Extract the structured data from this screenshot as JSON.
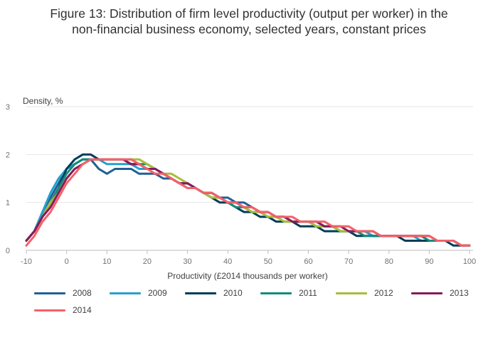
{
  "title_lines": [
    "Figure 13: Distribution of firm level productivity (output per worker) in the",
    "non-financial business economy, selected years, constant prices"
  ],
  "chart_data": {
    "type": "line",
    "title": "Figure 13: Distribution of firm level productivity (output per worker) in the non-financial business economy, selected years, constant prices",
    "xlabel": "Productivity (£2014 thousands per worker)",
    "ylabel": "Density, %",
    "xlim": [
      -10,
      100
    ],
    "ylim": [
      0,
      3
    ],
    "x_ticks": [
      "-10",
      "0",
      "10",
      "20",
      "30",
      "40",
      "50",
      "60",
      "70",
      "80",
      "90",
      "100"
    ],
    "y_ticks": [
      "0",
      "1",
      "2",
      "3"
    ],
    "grid": true,
    "legend_position": "bottom",
    "series": [
      {
        "name": "2008",
        "color": "#206095",
        "x": [
          -10,
          -8,
          -6,
          -4,
          -2,
          0,
          2,
          4,
          6,
          8,
          10,
          12,
          14,
          16,
          18,
          20,
          22,
          24,
          26,
          28,
          30,
          32,
          34,
          36,
          38,
          40,
          42,
          44,
          46,
          48,
          50,
          52,
          54,
          56,
          58,
          60,
          62,
          64,
          66,
          68,
          70,
          72,
          74,
          76,
          78,
          80,
          82,
          84,
          86,
          88,
          90,
          92,
          94,
          96,
          98,
          100
        ],
        "y": [
          0.2,
          0.4,
          0.8,
          1.1,
          1.4,
          1.7,
          1.8,
          1.9,
          1.9,
          1.7,
          1.6,
          1.7,
          1.7,
          1.7,
          1.6,
          1.6,
          1.6,
          1.5,
          1.5,
          1.4,
          1.4,
          1.3,
          1.2,
          1.2,
          1.1,
          1.1,
          1.0,
          1.0,
          0.9,
          0.8,
          0.8,
          0.7,
          0.7,
          0.6,
          0.6,
          0.6,
          0.6,
          0.5,
          0.5,
          0.4,
          0.4,
          0.4,
          0.4,
          0.3,
          0.3,
          0.3,
          0.3,
          0.3,
          0.3,
          0.3,
          0.2,
          0.2,
          0.2,
          0.2,
          0.1,
          0.1
        ]
      },
      {
        "name": "2009",
        "color": "#27a0cc",
        "x": [
          -10,
          -8,
          -6,
          -4,
          -2,
          0,
          2,
          4,
          6,
          8,
          10,
          12,
          14,
          16,
          18,
          20,
          22,
          24,
          26,
          28,
          30,
          32,
          34,
          36,
          38,
          40,
          42,
          44,
          46,
          48,
          50,
          52,
          54,
          56,
          58,
          60,
          62,
          64,
          66,
          68,
          70,
          72,
          74,
          76,
          78,
          80,
          82,
          84,
          86,
          88,
          90,
          92,
          94,
          96,
          98,
          100
        ],
        "y": [
          0.2,
          0.4,
          0.8,
          1.2,
          1.5,
          1.7,
          1.8,
          1.9,
          1.9,
          1.9,
          1.8,
          1.8,
          1.8,
          1.8,
          1.7,
          1.7,
          1.7,
          1.6,
          1.5,
          1.4,
          1.4,
          1.3,
          1.2,
          1.2,
          1.1,
          1.0,
          1.0,
          0.9,
          0.9,
          0.8,
          0.8,
          0.7,
          0.7,
          0.6,
          0.6,
          0.6,
          0.6,
          0.5,
          0.5,
          0.4,
          0.4,
          0.4,
          0.4,
          0.3,
          0.3,
          0.3,
          0.3,
          0.3,
          0.3,
          0.2,
          0.2,
          0.2,
          0.2,
          0.2,
          0.1,
          0.1
        ]
      },
      {
        "name": "2010",
        "color": "#003c57",
        "x": [
          -10,
          -8,
          -6,
          -4,
          -2,
          0,
          2,
          4,
          6,
          8,
          10,
          12,
          14,
          16,
          18,
          20,
          22,
          24,
          26,
          28,
          30,
          32,
          34,
          36,
          38,
          40,
          42,
          44,
          46,
          48,
          50,
          52,
          54,
          56,
          58,
          60,
          62,
          64,
          66,
          68,
          70,
          72,
          74,
          76,
          78,
          80,
          82,
          84,
          86,
          88,
          90,
          92,
          94,
          96,
          98,
          100
        ],
        "y": [
          0.2,
          0.4,
          0.7,
          1.0,
          1.3,
          1.7,
          1.9,
          2.0,
          2.0,
          1.9,
          1.9,
          1.9,
          1.9,
          1.8,
          1.8,
          1.7,
          1.7,
          1.6,
          1.5,
          1.4,
          1.4,
          1.3,
          1.2,
          1.1,
          1.0,
          1.0,
          0.9,
          0.8,
          0.8,
          0.7,
          0.7,
          0.6,
          0.6,
          0.6,
          0.5,
          0.5,
          0.5,
          0.4,
          0.4,
          0.4,
          0.4,
          0.3,
          0.3,
          0.3,
          0.3,
          0.3,
          0.3,
          0.2,
          0.2,
          0.2,
          0.2,
          0.2,
          0.2,
          0.1,
          0.1,
          0.1
        ]
      },
      {
        "name": "2011",
        "color": "#118c7b",
        "x": [
          -10,
          -8,
          -6,
          -4,
          -2,
          0,
          2,
          4,
          6,
          8,
          10,
          12,
          14,
          16,
          18,
          20,
          22,
          24,
          26,
          28,
          30,
          32,
          34,
          36,
          38,
          40,
          42,
          44,
          46,
          48,
          50,
          52,
          54,
          56,
          58,
          60,
          62,
          64,
          66,
          68,
          70,
          72,
          74,
          76,
          78,
          80,
          82,
          84,
          86,
          88,
          90,
          92,
          94,
          96,
          98,
          100
        ],
        "y": [
          0.2,
          0.4,
          0.7,
          1.0,
          1.3,
          1.6,
          1.8,
          1.9,
          1.9,
          1.9,
          1.9,
          1.9,
          1.9,
          1.9,
          1.8,
          1.8,
          1.7,
          1.6,
          1.5,
          1.4,
          1.3,
          1.3,
          1.2,
          1.1,
          1.1,
          1.0,
          0.9,
          0.9,
          0.8,
          0.8,
          0.7,
          0.7,
          0.7,
          0.6,
          0.6,
          0.6,
          0.5,
          0.5,
          0.5,
          0.4,
          0.4,
          0.4,
          0.3,
          0.3,
          0.3,
          0.3,
          0.3,
          0.3,
          0.3,
          0.3,
          0.2,
          0.2,
          0.2,
          0.2,
          0.1,
          0.1
        ]
      },
      {
        "name": "2012",
        "color": "#a8bd3a",
        "x": [
          -10,
          -8,
          -6,
          -4,
          -2,
          0,
          2,
          4,
          6,
          8,
          10,
          12,
          14,
          16,
          18,
          20,
          22,
          24,
          26,
          28,
          30,
          32,
          34,
          36,
          38,
          40,
          42,
          44,
          46,
          48,
          50,
          52,
          54,
          56,
          58,
          60,
          62,
          64,
          66,
          68,
          70,
          72,
          74,
          76,
          78,
          80,
          82,
          84,
          86,
          88,
          90,
          92,
          94,
          96,
          98,
          100
        ],
        "y": [
          0.2,
          0.4,
          0.7,
          1.0,
          1.2,
          1.5,
          1.7,
          1.8,
          1.9,
          1.9,
          1.9,
          1.9,
          1.9,
          1.9,
          1.9,
          1.8,
          1.7,
          1.6,
          1.6,
          1.5,
          1.4,
          1.3,
          1.2,
          1.1,
          1.1,
          1.0,
          1.0,
          0.9,
          0.8,
          0.8,
          0.7,
          0.7,
          0.6,
          0.6,
          0.6,
          0.6,
          0.5,
          0.5,
          0.5,
          0.4,
          0.4,
          0.4,
          0.4,
          0.4,
          0.3,
          0.3,
          0.3,
          0.3,
          0.3,
          0.3,
          0.3,
          0.2,
          0.2,
          0.2,
          0.1,
          0.1
        ]
      },
      {
        "name": "2013",
        "color": "#871a5b",
        "x": [
          -10,
          -8,
          -6,
          -4,
          -2,
          0,
          2,
          4,
          6,
          8,
          10,
          12,
          14,
          16,
          18,
          20,
          22,
          24,
          26,
          28,
          30,
          32,
          34,
          36,
          38,
          40,
          42,
          44,
          46,
          48,
          50,
          52,
          54,
          56,
          58,
          60,
          62,
          64,
          66,
          68,
          70,
          72,
          74,
          76,
          78,
          80,
          82,
          84,
          86,
          88,
          90,
          92,
          94,
          96,
          98,
          100
        ],
        "y": [
          0.2,
          0.4,
          0.7,
          0.9,
          1.2,
          1.5,
          1.7,
          1.8,
          1.9,
          1.9,
          1.9,
          1.9,
          1.9,
          1.8,
          1.8,
          1.7,
          1.7,
          1.6,
          1.5,
          1.4,
          1.4,
          1.3,
          1.2,
          1.2,
          1.1,
          1.0,
          1.0,
          0.9,
          0.9,
          0.8,
          0.8,
          0.7,
          0.7,
          0.6,
          0.6,
          0.6,
          0.6,
          0.5,
          0.5,
          0.5,
          0.4,
          0.4,
          0.4,
          0.4,
          0.3,
          0.3,
          0.3,
          0.3,
          0.3,
          0.3,
          0.3,
          0.2,
          0.2,
          0.2,
          0.1,
          0.1
        ]
      },
      {
        "name": "2014",
        "color": "#f66068",
        "x": [
          -10,
          -8,
          -6,
          -4,
          -2,
          0,
          2,
          4,
          6,
          8,
          10,
          12,
          14,
          16,
          18,
          20,
          22,
          24,
          26,
          28,
          30,
          32,
          34,
          36,
          38,
          40,
          42,
          44,
          46,
          48,
          50,
          52,
          54,
          56,
          58,
          60,
          62,
          64,
          66,
          68,
          70,
          72,
          74,
          76,
          78,
          80,
          82,
          84,
          86,
          88,
          90,
          92,
          94,
          96,
          98,
          100
        ],
        "y": [
          0.1,
          0.3,
          0.6,
          0.8,
          1.1,
          1.4,
          1.6,
          1.8,
          1.9,
          1.9,
          1.9,
          1.9,
          1.9,
          1.9,
          1.8,
          1.7,
          1.6,
          1.6,
          1.5,
          1.4,
          1.3,
          1.3,
          1.2,
          1.2,
          1.1,
          1.0,
          1.0,
          0.9,
          0.9,
          0.8,
          0.8,
          0.7,
          0.7,
          0.7,
          0.6,
          0.6,
          0.6,
          0.6,
          0.5,
          0.5,
          0.5,
          0.4,
          0.4,
          0.4,
          0.3,
          0.3,
          0.3,
          0.3,
          0.3,
          0.3,
          0.3,
          0.2,
          0.2,
          0.2,
          0.1,
          0.1
        ]
      }
    ]
  }
}
